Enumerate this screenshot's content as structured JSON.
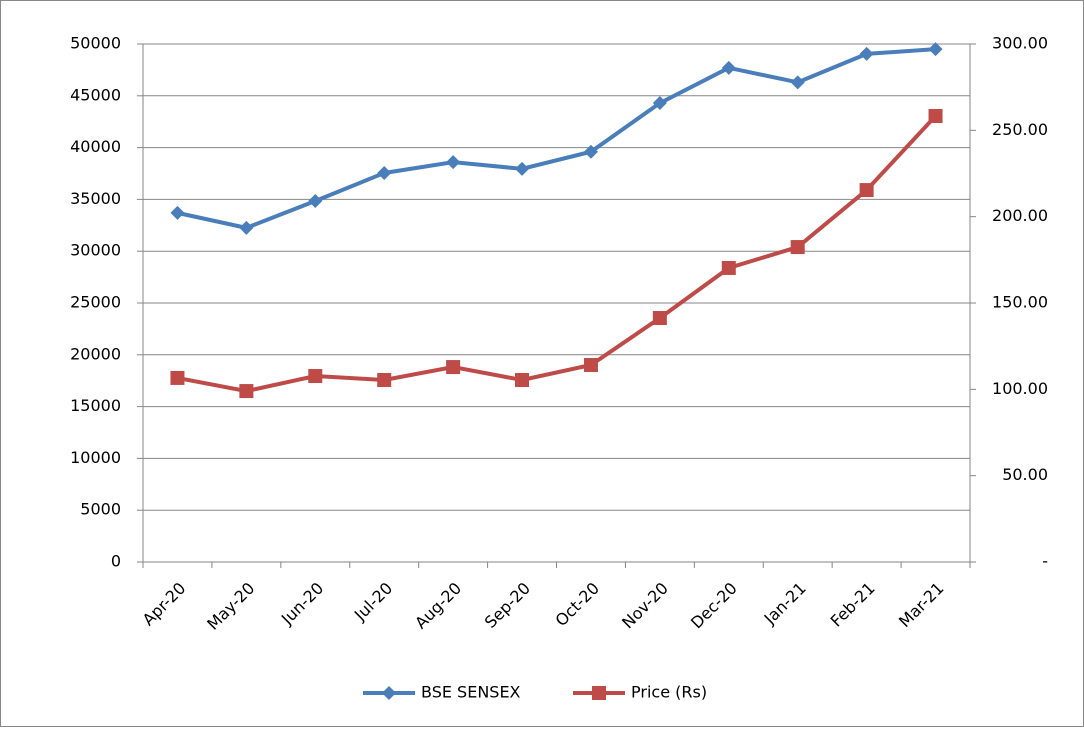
{
  "chart_data": {
    "type": "line",
    "categories": [
      "Apr-20",
      "May-20",
      "Jun-20",
      "Jul-20",
      "Aug-20",
      "Sep-20",
      "Oct-20",
      "Nov-20",
      "Dec-20",
      "Jan-21",
      "Feb-21",
      "Mar-21"
    ],
    "series": [
      {
        "name": "BSE SENSEX",
        "color": "#4a7ebb",
        "marker": "diamond",
        "values": [
          33700,
          32250,
          34850,
          37550,
          38600,
          37950,
          39600,
          44300,
          47700,
          46300,
          49050,
          49500
        ]
      },
      {
        "name": "Price (Rs)",
        "color": "#be4b48",
        "marker": "square",
        "axis": "y2",
        "values": [
          106.6,
          99.0,
          107.7,
          105.4,
          112.9,
          105.4,
          114.1,
          141.3,
          170.3,
          182.4,
          215.4,
          258.3
        ]
      }
    ],
    "ylim": [
      0,
      50000
    ],
    "yticks": [
      0,
      5000,
      10000,
      15000,
      20000,
      25000,
      30000,
      35000,
      40000,
      45000,
      50000
    ],
    "y2lim": [
      0,
      300
    ],
    "y2ticks": [
      {
        "value": 0,
        "label": "-"
      },
      {
        "value": 50,
        "label": "50.00"
      },
      {
        "value": 100,
        "label": "100.00"
      },
      {
        "value": 150,
        "label": "150.00"
      },
      {
        "value": 200,
        "label": "200.00"
      },
      {
        "value": 250,
        "label": "250.00"
      },
      {
        "value": 300,
        "label": "300.00"
      }
    ],
    "grid": true,
    "legend": "bottom"
  }
}
